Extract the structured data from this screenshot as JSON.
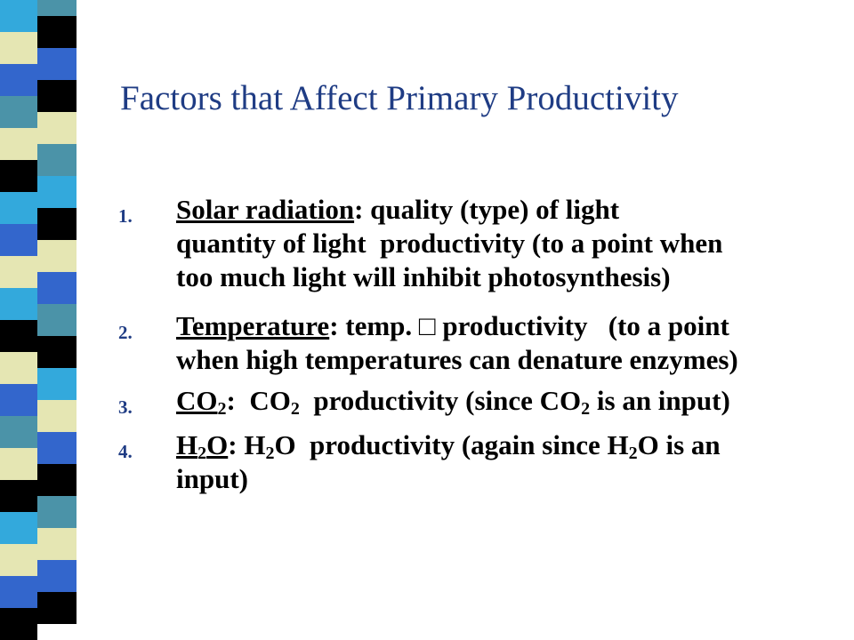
{
  "title": "Factors that Affect Primary Productivity",
  "items": [
    {
      "number": "1.",
      "term": "Solar radiation",
      "lines": [
        ": quality (type) of light",
        "quantity of light  productivity (to a point when",
        "too much light will inhibit photosynthesis)"
      ]
    },
    {
      "number": "2.",
      "term": "Temperature",
      "lines": [
        ": temp. □ productivity   (to a point",
        "when high temperatures can denature enzymes)"
      ]
    },
    {
      "number": "3.",
      "term": [
        "CO",
        "2"
      ],
      "text": [
        ":  CO",
        "2",
        "  productivity (since CO",
        "2",
        " is an input)"
      ]
    },
    {
      "number": "4.",
      "term": [
        "H",
        "2",
        "O"
      ],
      "text": [
        ": H",
        "2",
        "O  productivity (again since H",
        "2",
        "O is an"
      ],
      "lines": [
        "input)"
      ]
    }
  ]
}
